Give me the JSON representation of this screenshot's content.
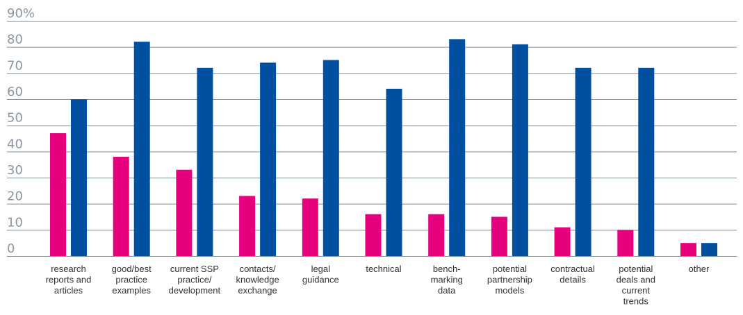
{
  "chart_data": {
    "type": "bar",
    "categories": [
      [
        "research",
        "reports and",
        "articles"
      ],
      [
        "good/best",
        "practice",
        "examples"
      ],
      [
        "current SSP",
        "practice/",
        "development"
      ],
      [
        "contacts/",
        "knowledge",
        "exchange"
      ],
      [
        "legal",
        "guidance"
      ],
      [
        "technical"
      ],
      [
        "bench-",
        "marking",
        "data"
      ],
      [
        "potential",
        "partnership",
        "models"
      ],
      [
        "contractual",
        "details"
      ],
      [
        "potential",
        "deals and",
        "current",
        "trends"
      ],
      [
        "other"
      ]
    ],
    "series": [
      {
        "color": "#e6007e",
        "values": [
          47,
          38,
          33,
          23,
          22,
          16,
          16,
          15,
          11,
          10,
          5
        ]
      },
      {
        "color": "#0050a0",
        "values": [
          60,
          82,
          72,
          74,
          75,
          64,
          83,
          81,
          72,
          72,
          5
        ]
      }
    ],
    "yticks": [
      "0",
      "10",
      "20",
      "30",
      "40",
      "50",
      "60",
      "70",
      "80",
      "90%"
    ],
    "ylim": [
      0,
      90
    ],
    "grid": true,
    "title": "",
    "xlabel": "",
    "ylabel": ""
  }
}
